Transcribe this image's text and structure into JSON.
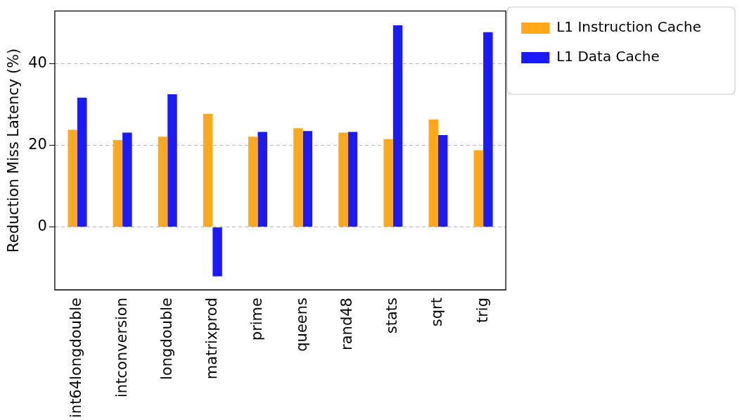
{
  "chart_data": {
    "type": "bar",
    "ylabel": "Reduction Miss Latency (%)",
    "categories": [
      "int64longdouble",
      "intconversion",
      "longdouble",
      "matrixprod",
      "prime",
      "queens",
      "rand48",
      "stats",
      "sqrt",
      "trig"
    ],
    "series": [
      {
        "name": "L1 Instruction Cache",
        "color": "#ffa91a",
        "values": [
          23.8,
          21.3,
          22.1,
          27.7,
          22.1,
          24.2,
          23.1,
          21.5,
          26.3,
          18.8
        ]
      },
      {
        "name": "L1 Data Cache",
        "color": "#1a1aff",
        "values": [
          31.7,
          23.1,
          32.5,
          -12.1,
          23.3,
          23.5,
          23.3,
          49.4,
          22.5,
          47.7
        ]
      }
    ],
    "ylim": [
      -15.4,
      52.9
    ],
    "yticks": [
      0,
      20,
      40
    ],
    "grid": "y",
    "legend": "top right"
  }
}
